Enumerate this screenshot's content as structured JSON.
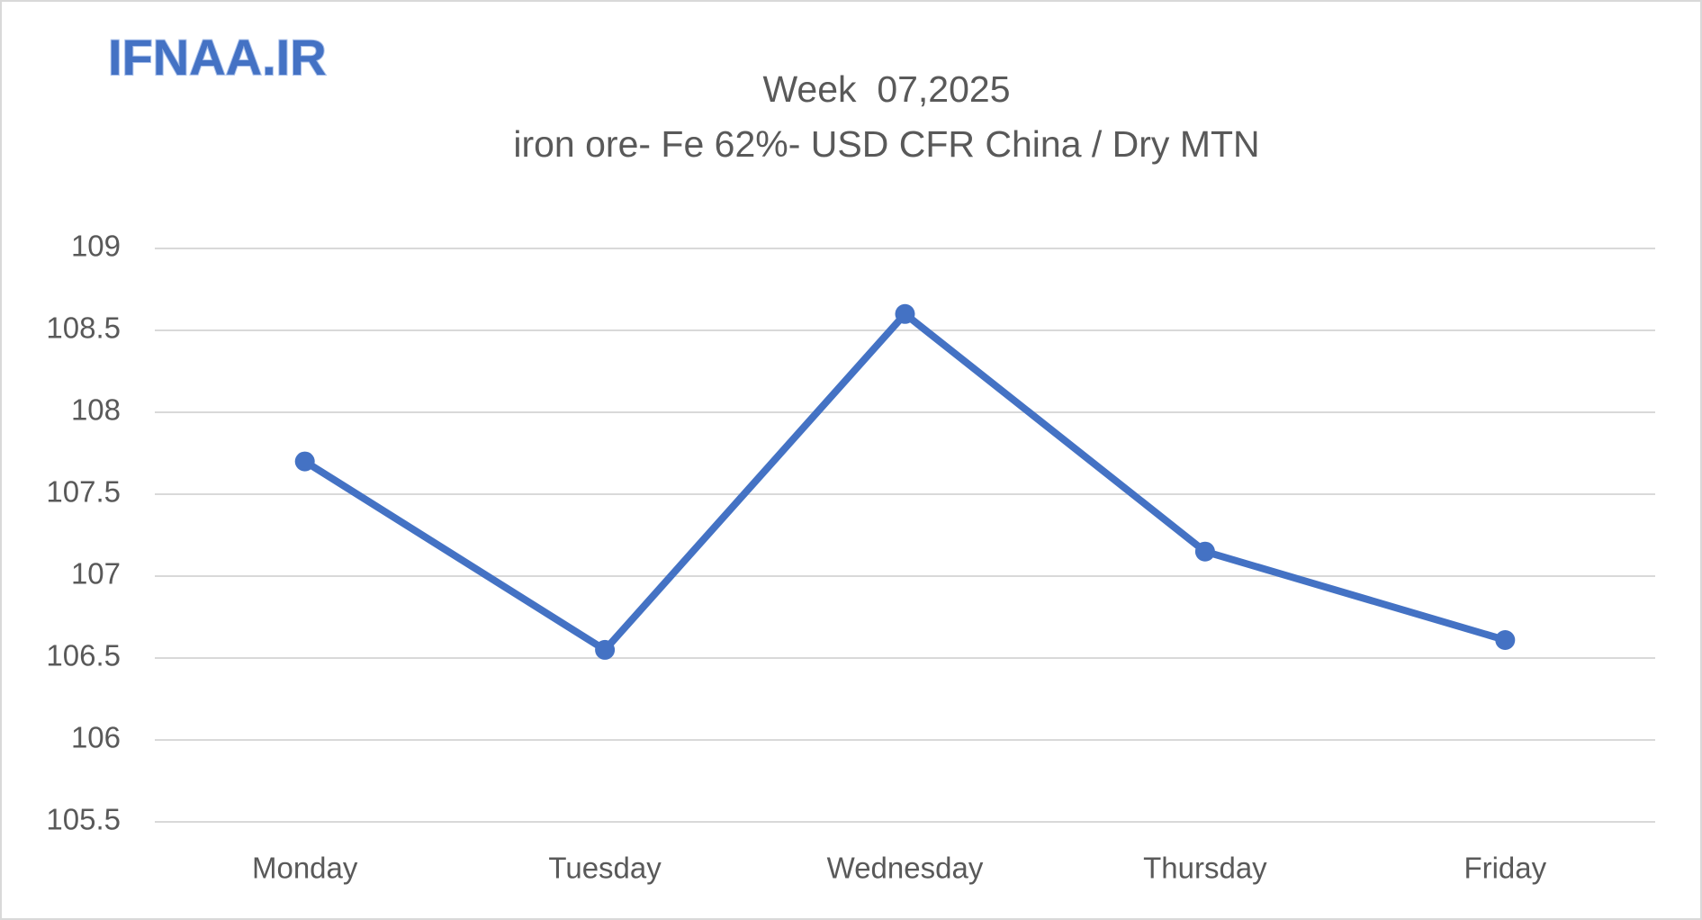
{
  "logo": "IFNAA.IR",
  "chart_data": {
    "type": "line",
    "title": "Week  07,2025",
    "subtitle": "iron ore- Fe 62%- USD CFR China / Dry MTN",
    "categories": [
      "Monday",
      "Tuesday",
      "Wednesday",
      "Thursday",
      "Friday"
    ],
    "series": [
      {
        "name": "iron ore- Fe 62%- USD CFR China / Dry MTN",
        "color": "#4472c4",
        "values": [
          107.7,
          106.55,
          108.6,
          107.15,
          106.61
        ]
      }
    ],
    "ylim": [
      105.5,
      109
    ],
    "yticks": [
      105.5,
      106,
      106.5,
      107,
      107.5,
      108,
      108.5,
      109
    ],
    "grid": true
  }
}
